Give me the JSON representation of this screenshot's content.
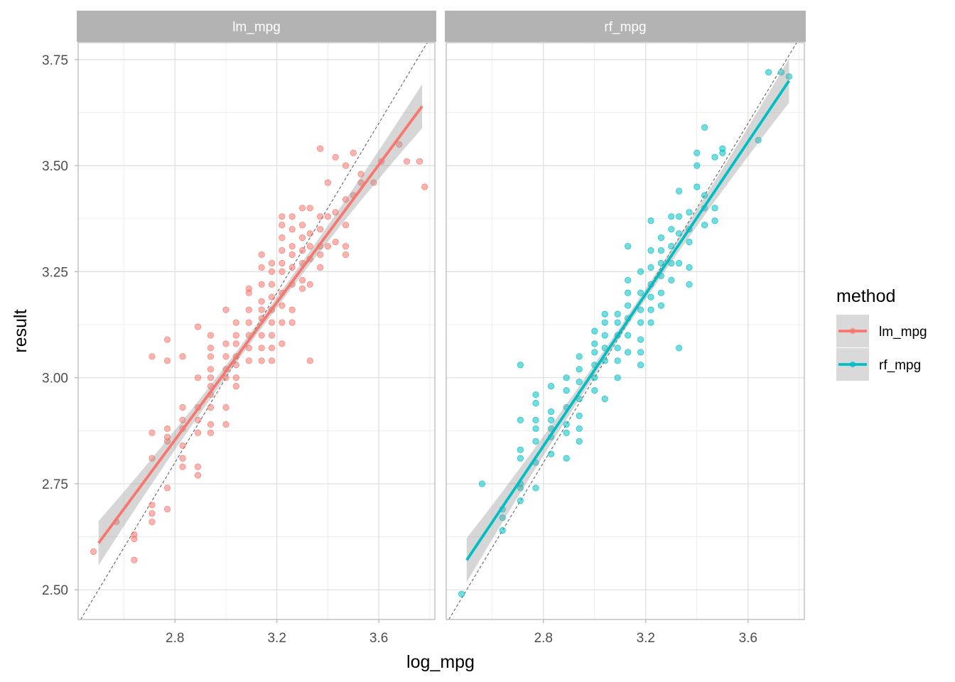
{
  "chart_data": {
    "type": "scatter",
    "xlabel": "log_mpg",
    "ylabel": "result",
    "x_ticks": [
      2.8,
      3.2,
      3.6
    ],
    "y_ticks": [
      2.5,
      2.75,
      3.0,
      3.25,
      3.5,
      3.75
    ],
    "y_tick_labels": [
      "2.50",
      "2.75",
      "3.00",
      "3.25",
      "3.50",
      "3.75"
    ],
    "x_tick_labels": [
      "2.8",
      "3.2",
      "3.6"
    ],
    "xlim": [
      2.42,
      3.82
    ],
    "ylim": [
      2.43,
      3.79
    ],
    "grid": true,
    "reference_line": "y = x (dashed)",
    "legend": {
      "title": "method",
      "position": "right",
      "items": [
        {
          "label": "lm_mpg",
          "color": "#F8766D"
        },
        {
          "label": "rf_mpg",
          "color": "#00BFC4"
        }
      ]
    },
    "panels": [
      {
        "strip": "lm_mpg",
        "color": "#F8766D",
        "fit": {
          "x": [
            2.5,
            3.77
          ],
          "y": [
            2.61,
            3.64
          ]
        },
        "points": [
          [
            2.48,
            2.59
          ],
          [
            2.57,
            2.66
          ],
          [
            2.64,
            2.63
          ],
          [
            2.64,
            2.62
          ],
          [
            2.64,
            2.57
          ],
          [
            2.71,
            2.81
          ],
          [
            2.71,
            2.87
          ],
          [
            2.71,
            2.7
          ],
          [
            2.71,
            2.68
          ],
          [
            2.71,
            2.66
          ],
          [
            2.71,
            3.05
          ],
          [
            2.77,
            2.74
          ],
          [
            2.77,
            2.69
          ],
          [
            2.77,
            3.04
          ],
          [
            2.77,
            3.09
          ],
          [
            2.77,
            2.88
          ],
          [
            2.77,
            2.86
          ],
          [
            2.77,
            2.85
          ],
          [
            2.83,
            2.81
          ],
          [
            2.83,
            2.84
          ],
          [
            2.83,
            2.88
          ],
          [
            2.83,
            2.9
          ],
          [
            2.83,
            2.93
          ],
          [
            2.83,
            3.05
          ],
          [
            2.83,
            2.79
          ],
          [
            2.89,
            2.79
          ],
          [
            2.89,
            2.77
          ],
          [
            2.89,
            2.87
          ],
          [
            2.89,
            2.9
          ],
          [
            2.89,
            2.93
          ],
          [
            2.89,
            3.0
          ],
          [
            2.89,
            3.12
          ],
          [
            2.94,
            2.87
          ],
          [
            2.94,
            2.89
          ],
          [
            2.94,
            2.93
          ],
          [
            2.94,
            2.96
          ],
          [
            2.94,
            2.98
          ],
          [
            2.94,
            3.0
          ],
          [
            2.94,
            3.02
          ],
          [
            2.94,
            3.05
          ],
          [
            2.94,
            3.07
          ],
          [
            2.94,
            3.1
          ],
          [
            3.0,
            2.89
          ],
          [
            3.0,
            2.93
          ],
          [
            3.0,
            3.0
          ],
          [
            3.0,
            3.02
          ],
          [
            3.0,
            3.05
          ],
          [
            3.0,
            3.08
          ],
          [
            3.0,
            3.16
          ],
          [
            3.04,
            2.98
          ],
          [
            3.04,
            3.0
          ],
          [
            3.04,
            3.03
          ],
          [
            3.04,
            3.05
          ],
          [
            3.04,
            3.08
          ],
          [
            3.04,
            3.1
          ],
          [
            3.04,
            3.13
          ],
          [
            3.09,
            3.04
          ],
          [
            3.09,
            3.07
          ],
          [
            3.09,
            3.1
          ],
          [
            3.09,
            3.13
          ],
          [
            3.09,
            3.16
          ],
          [
            3.09,
            3.2
          ],
          [
            3.09,
            3.21
          ],
          [
            3.14,
            3.04
          ],
          [
            3.14,
            3.07
          ],
          [
            3.14,
            3.1
          ],
          [
            3.14,
            3.14
          ],
          [
            3.14,
            3.16
          ],
          [
            3.14,
            3.18
          ],
          [
            3.14,
            3.22
          ],
          [
            3.14,
            3.26
          ],
          [
            3.14,
            3.29
          ],
          [
            3.18,
            3.04
          ],
          [
            3.18,
            3.07
          ],
          [
            3.18,
            3.1
          ],
          [
            3.18,
            3.13
          ],
          [
            3.18,
            3.16
          ],
          [
            3.18,
            3.19
          ],
          [
            3.18,
            3.22
          ],
          [
            3.18,
            3.25
          ],
          [
            3.18,
            3.27
          ],
          [
            3.22,
            3.08
          ],
          [
            3.22,
            3.13
          ],
          [
            3.22,
            3.17
          ],
          [
            3.22,
            3.2
          ],
          [
            3.22,
            3.25
          ],
          [
            3.22,
            3.27
          ],
          [
            3.22,
            3.3
          ],
          [
            3.22,
            3.33
          ],
          [
            3.22,
            3.36
          ],
          [
            3.22,
            3.38
          ],
          [
            3.26,
            3.13
          ],
          [
            3.26,
            3.16
          ],
          [
            3.26,
            3.22
          ],
          [
            3.26,
            3.26
          ],
          [
            3.26,
            3.29
          ],
          [
            3.26,
            3.31
          ],
          [
            3.26,
            3.35
          ],
          [
            3.26,
            3.38
          ],
          [
            3.3,
            3.21
          ],
          [
            3.3,
            3.23
          ],
          [
            3.3,
            3.27
          ],
          [
            3.3,
            3.3
          ],
          [
            3.3,
            3.33
          ],
          [
            3.3,
            3.36
          ],
          [
            3.3,
            3.4
          ],
          [
            3.33,
            3.04
          ],
          [
            3.33,
            3.22
          ],
          [
            3.33,
            3.28
          ],
          [
            3.33,
            3.31
          ],
          [
            3.33,
            3.34
          ],
          [
            3.33,
            3.4
          ],
          [
            3.37,
            3.26
          ],
          [
            3.37,
            3.29
          ],
          [
            3.37,
            3.31
          ],
          [
            3.37,
            3.35
          ],
          [
            3.37,
            3.38
          ],
          [
            3.37,
            3.54
          ],
          [
            3.4,
            3.31
          ],
          [
            3.4,
            3.38
          ],
          [
            3.4,
            3.46
          ],
          [
            3.43,
            3.32
          ],
          [
            3.43,
            3.39
          ],
          [
            3.43,
            3.52
          ],
          [
            3.47,
            3.29
          ],
          [
            3.47,
            3.31
          ],
          [
            3.47,
            3.36
          ],
          [
            3.47,
            3.42
          ],
          [
            3.47,
            3.5
          ],
          [
            3.5,
            3.43
          ],
          [
            3.5,
            3.53
          ],
          [
            3.53,
            3.46
          ],
          [
            3.53,
            3.48
          ],
          [
            3.58,
            3.46
          ],
          [
            3.61,
            3.51
          ],
          [
            3.68,
            3.55
          ],
          [
            3.71,
            3.51
          ],
          [
            3.76,
            3.51
          ],
          [
            3.78,
            3.45
          ]
        ]
      },
      {
        "strip": "rf_mpg",
        "color": "#00BFC4",
        "fit": {
          "x": [
            2.5,
            3.76
          ],
          "y": [
            2.57,
            3.7
          ]
        },
        "points": [
          [
            2.48,
            2.49
          ],
          [
            2.56,
            2.75
          ],
          [
            2.64,
            2.64
          ],
          [
            2.64,
            2.67
          ],
          [
            2.64,
            2.69
          ],
          [
            2.71,
            2.71
          ],
          [
            2.71,
            2.74
          ],
          [
            2.71,
            2.75
          ],
          [
            2.71,
            2.81
          ],
          [
            2.71,
            2.83
          ],
          [
            2.71,
            2.9
          ],
          [
            2.71,
            3.03
          ],
          [
            2.77,
            2.74
          ],
          [
            2.77,
            2.8
          ],
          [
            2.77,
            2.85
          ],
          [
            2.77,
            2.88
          ],
          [
            2.77,
            2.9
          ],
          [
            2.77,
            2.94
          ],
          [
            2.77,
            2.96
          ],
          [
            2.83,
            2.82
          ],
          [
            2.83,
            2.86
          ],
          [
            2.83,
            2.88
          ],
          [
            2.83,
            2.9
          ],
          [
            2.83,
            2.92
          ],
          [
            2.83,
            2.98
          ],
          [
            2.89,
            2.81
          ],
          [
            2.89,
            2.87
          ],
          [
            2.89,
            2.89
          ],
          [
            2.89,
            2.93
          ],
          [
            2.89,
            2.97
          ],
          [
            2.89,
            3.0
          ],
          [
            2.94,
            2.85
          ],
          [
            2.94,
            2.88
          ],
          [
            2.94,
            2.91
          ],
          [
            2.94,
            2.95
          ],
          [
            2.94,
            2.99
          ],
          [
            2.94,
            3.02
          ],
          [
            2.94,
            3.05
          ],
          [
            3.0,
            2.97
          ],
          [
            3.0,
            3.0
          ],
          [
            3.0,
            3.03
          ],
          [
            3.0,
            3.06
          ],
          [
            3.0,
            3.08
          ],
          [
            3.0,
            3.11
          ],
          [
            3.04,
            2.95
          ],
          [
            3.04,
            3.04
          ],
          [
            3.04,
            3.07
          ],
          [
            3.04,
            3.1
          ],
          [
            3.04,
            3.13
          ],
          [
            3.04,
            3.15
          ],
          [
            3.09,
            3.0
          ],
          [
            3.09,
            3.04
          ],
          [
            3.09,
            3.07
          ],
          [
            3.09,
            3.1
          ],
          [
            3.09,
            3.13
          ],
          [
            3.09,
            3.15
          ],
          [
            3.13,
            3.06
          ],
          [
            3.13,
            3.1
          ],
          [
            3.13,
            3.14
          ],
          [
            3.13,
            3.17
          ],
          [
            3.13,
            3.2
          ],
          [
            3.13,
            3.23
          ],
          [
            3.13,
            3.31
          ],
          [
            3.18,
            3.03
          ],
          [
            3.18,
            3.06
          ],
          [
            3.18,
            3.09
          ],
          [
            3.18,
            3.13
          ],
          [
            3.18,
            3.16
          ],
          [
            3.18,
            3.2
          ],
          [
            3.18,
            3.25
          ],
          [
            3.22,
            3.13
          ],
          [
            3.22,
            3.16
          ],
          [
            3.22,
            3.19
          ],
          [
            3.22,
            3.22
          ],
          [
            3.22,
            3.26
          ],
          [
            3.22,
            3.3
          ],
          [
            3.22,
            3.37
          ],
          [
            3.26,
            3.17
          ],
          [
            3.26,
            3.2
          ],
          [
            3.26,
            3.24
          ],
          [
            3.26,
            3.27
          ],
          [
            3.26,
            3.3
          ],
          [
            3.26,
            3.33
          ],
          [
            3.3,
            3.23
          ],
          [
            3.3,
            3.27
          ],
          [
            3.3,
            3.31
          ],
          [
            3.3,
            3.35
          ],
          [
            3.3,
            3.38
          ],
          [
            3.33,
            3.07
          ],
          [
            3.33,
            3.27
          ],
          [
            3.33,
            3.34
          ],
          [
            3.33,
            3.38
          ],
          [
            3.33,
            3.44
          ],
          [
            3.37,
            3.22
          ],
          [
            3.37,
            3.26
          ],
          [
            3.37,
            3.32
          ],
          [
            3.37,
            3.35
          ],
          [
            3.37,
            3.39
          ],
          [
            3.4,
            3.45
          ],
          [
            3.4,
            3.5
          ],
          [
            3.4,
            3.53
          ],
          [
            3.43,
            3.36
          ],
          [
            3.43,
            3.4
          ],
          [
            3.43,
            3.43
          ],
          [
            3.43,
            3.59
          ],
          [
            3.47,
            3.37
          ],
          [
            3.47,
            3.4
          ],
          [
            3.47,
            3.52
          ],
          [
            3.5,
            3.53
          ],
          [
            3.5,
            3.54
          ],
          [
            3.64,
            3.56
          ],
          [
            3.68,
            3.72
          ],
          [
            3.73,
            3.72
          ],
          [
            3.76,
            3.71
          ]
        ]
      }
    ]
  }
}
